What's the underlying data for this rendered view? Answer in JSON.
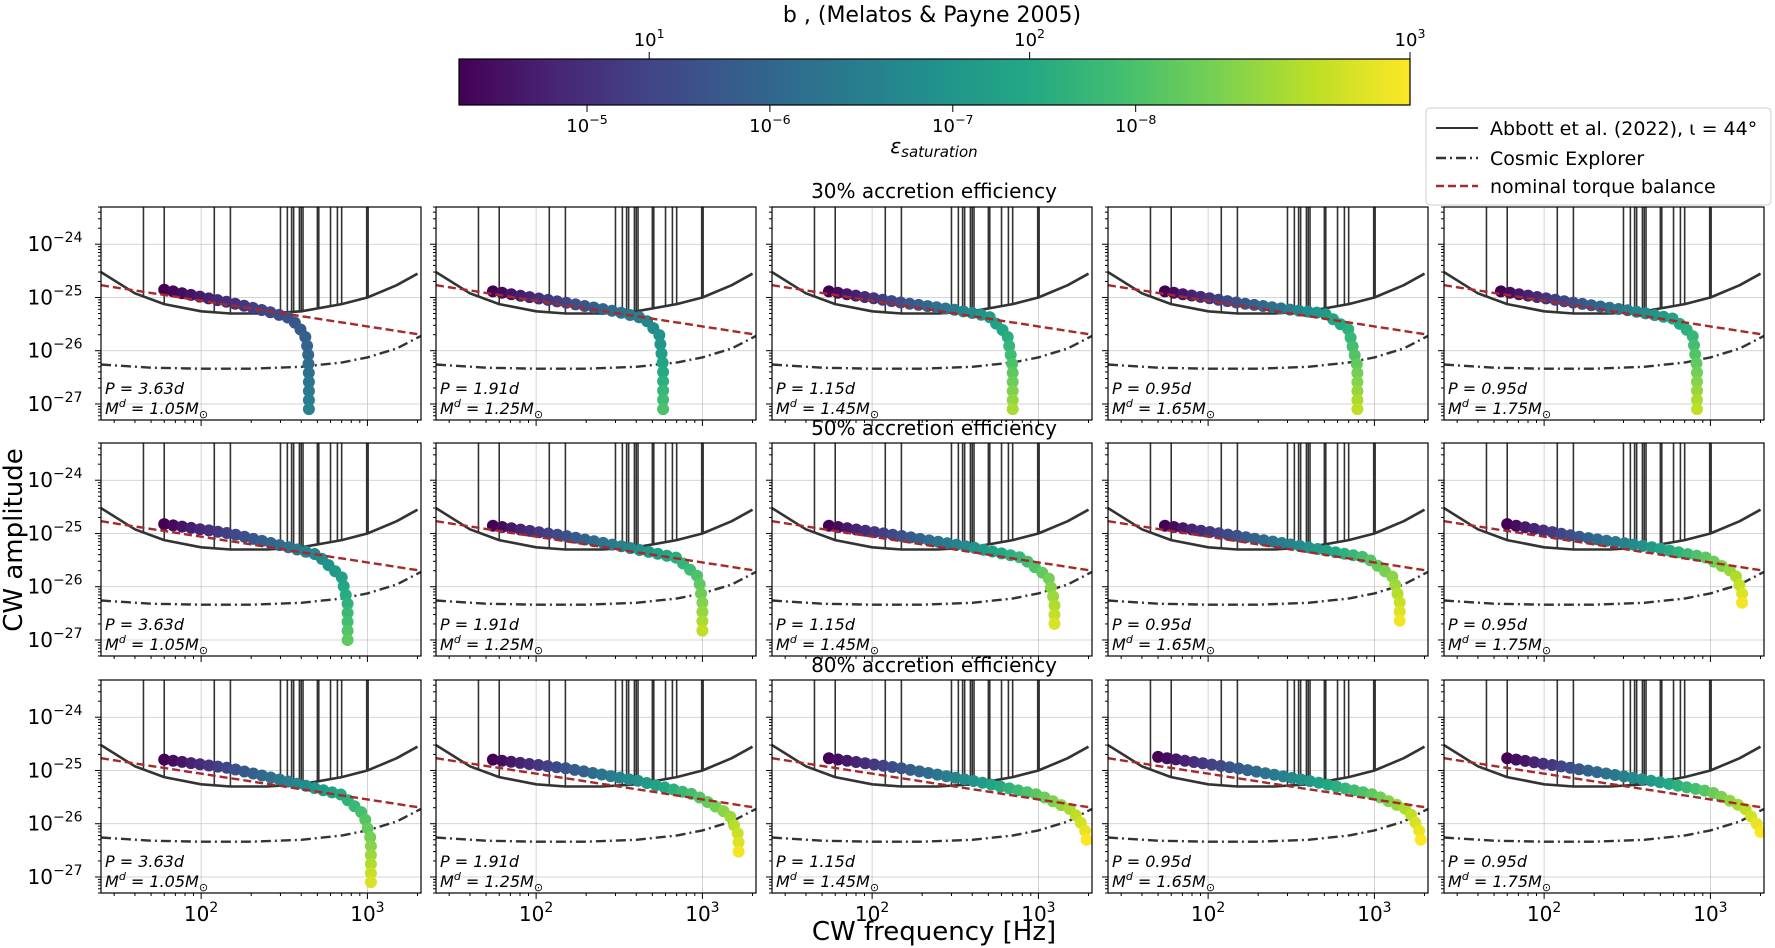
{
  "chart_data": [
    {
      "type": "scatter",
      "xlabel": "CW frequency [Hz]",
      "ylabel": "CW amplitude",
      "xscale": "log",
      "yscale": "log",
      "xlim": [
        25,
        2100
      ],
      "ylim": [
        5e-28,
        5e-24
      ],
      "grid": true,
      "x_tick_labels": [
        "10^2",
        "10^3"
      ],
      "y_tick_labels": [
        "10^-27",
        "10^-26",
        "10^-25",
        "10^-24"
      ],
      "row_titles": [
        "30% accretion efficiency",
        "50% accretion efficiency",
        "80% accretion efficiency"
      ],
      "legend": {
        "placement": "top-right",
        "entries": [
          {
            "label": "Abbott et al. (2022), ι = 44°",
            "style": "solid",
            "color": "#333333"
          },
          {
            "label": "Cosmic Explorer",
            "style": "dashdot",
            "color": "#333333"
          },
          {
            "label": "nominal torque balance",
            "style": "dashed",
            "color": "#a52a2a"
          }
        ]
      },
      "colorbar": {
        "colormap": "viridis",
        "top_label": "b , (Melatos & Payne 2005)",
        "top_ticks": [
          "10^1",
          "10^2",
          "10^3"
        ],
        "bottom_label": "ε_saturation",
        "bottom_ticks": [
          "10^-5",
          "10^-6",
          "10^-7",
          "10^-8"
        ]
      },
      "reference_curves": {
        "abbott_2022": {
          "f": [
            25,
            40,
            60,
            100,
            150,
            250,
            400,
            700,
            1000,
            1500,
            2000
          ],
          "h": [
            3e-25,
            1.2e-25,
            7.5e-26,
            5.5e-26,
            5e-26,
            5e-26,
            5.5e-26,
            7.5e-26,
            1e-25,
            1.7e-25,
            2.8e-25
          ]
        },
        "abbott_2022_lines_hz": [
          45,
          60,
          120,
          150,
          300,
          330,
          350,
          360,
          390,
          400,
          410,
          500,
          510,
          600,
          660,
          700,
          990,
          1000,
          1010
        ],
        "cosmic_explorer": {
          "f": [
            25,
            50,
            100,
            200,
            400,
            700,
            1000,
            1500,
            2100
          ],
          "h": [
            5.5e-27,
            4.8e-27,
            4.6e-27,
            4.6e-27,
            5e-27,
            6e-27,
            7.5e-27,
            1.1e-26,
            1.9e-26
          ]
        },
        "nominal_torque_balance": {
          "f": [
            25,
            2100
          ],
          "h": [
            1.7e-25,
            2e-26
          ]
        }
      },
      "panels": [
        [
          {
            "label_P": "P = 3.63d",
            "label_M": "M^d = 1.05M_⊙",
            "path": [
              [
                60,
                1.4e-25
              ],
              [
                150,
                8e-26
              ],
              [
                250,
                5.5e-26
              ],
              [
                350,
                4e-26
              ],
              [
                420,
                2e-26
              ],
              [
                440,
                1e-26
              ],
              [
                445,
                3e-27
              ],
              [
                445,
                8e-28
              ]
            ],
            "eps_range": [
              -4.3,
              -6.6
            ]
          },
          {
            "label_P": "P = 1.91d",
            "label_M": "M^d = 1.25M_⊙",
            "path": [
              [
                55,
                1.3e-25
              ],
              [
                150,
                8e-26
              ],
              [
                300,
                5.5e-26
              ],
              [
                450,
                4e-26
              ],
              [
                550,
                2e-26
              ],
              [
                580,
                5e-27
              ],
              [
                580,
                8e-28
              ]
            ],
            "eps_range": [
              -4.3,
              -8.0
            ]
          },
          {
            "label_P": "P = 1.15d",
            "label_M": "M^d = 1.45M_⊙",
            "path": [
              [
                55,
                1.3e-25
              ],
              [
                150,
                8e-26
              ],
              [
                300,
                6e-26
              ],
              [
                500,
                4.5e-26
              ],
              [
                650,
                2e-26
              ],
              [
                700,
                5e-27
              ],
              [
                700,
                8e-28
              ]
            ],
            "eps_range": [
              -4.3,
              -8.8
            ]
          },
          {
            "label_P": "P = 0.95d",
            "label_M": "M^d = 1.65M_⊙",
            "path": [
              [
                55,
                1.3e-25
              ],
              [
                150,
                8e-26
              ],
              [
                300,
                6e-26
              ],
              [
                500,
                5e-26
              ],
              [
                700,
                2.5e-26
              ],
              [
                790,
                5e-27
              ],
              [
                790,
                8e-28
              ]
            ],
            "eps_range": [
              -4.3,
              -9.0
            ]
          },
          {
            "label_P": "P = 0.95d",
            "label_M": "M^d = 1.75M_⊙",
            "path": [
              [
                55,
                1.3e-25
              ],
              [
                150,
                8e-26
              ],
              [
                350,
                5.5e-26
              ],
              [
                600,
                4e-26
              ],
              [
                780,
                2e-26
              ],
              [
                830,
                5e-27
              ],
              [
                830,
                8e-28
              ]
            ],
            "eps_range": [
              -4.3,
              -9.0
            ]
          }
        ],
        [
          {
            "label_P": "P = 3.63d",
            "label_M": "M^d = 1.05M_⊙",
            "path": [
              [
                60,
                1.5e-25
              ],
              [
                150,
                1e-25
              ],
              [
                300,
                6e-26
              ],
              [
                500,
                4e-26
              ],
              [
                700,
                1.5e-26
              ],
              [
                760,
                5e-27
              ],
              [
                760,
                1e-27
              ]
            ],
            "eps_range": [
              -4.3,
              -8.2
            ]
          },
          {
            "label_P": "P = 1.91d",
            "label_M": "M^d = 1.25M_⊙",
            "path": [
              [
                55,
                1.4e-25
              ],
              [
                150,
                9e-26
              ],
              [
                350,
                5.5e-26
              ],
              [
                700,
                3.5e-26
              ],
              [
                950,
                1.5e-26
              ],
              [
                1000,
                5e-27
              ],
              [
                1000,
                1.5e-27
              ]
            ],
            "eps_range": [
              -4.3,
              -9.0
            ]
          },
          {
            "label_P": "P = 1.15d",
            "label_M": "M^d = 1.45M_⊙",
            "path": [
              [
                55,
                1.4e-25
              ],
              [
                150,
                9e-26
              ],
              [
                400,
                5.5e-26
              ],
              [
                800,
                3.5e-26
              ],
              [
                1150,
                1.5e-26
              ],
              [
                1250,
                5e-27
              ],
              [
                1250,
                2e-27
              ]
            ],
            "eps_range": [
              -4.3,
              -9.2
            ]
          },
          {
            "label_P": "P = 0.95d",
            "label_M": "M^d = 1.65M_⊙",
            "path": [
              [
                55,
                1.4e-25
              ],
              [
                150,
                9e-26
              ],
              [
                400,
                5.5e-26
              ],
              [
                900,
                3.5e-26
              ],
              [
                1300,
                1.5e-26
              ],
              [
                1420,
                5e-27
              ],
              [
                1420,
                2.3e-27
              ]
            ],
            "eps_range": [
              -4.3,
              -9.4
            ]
          },
          {
            "label_P": "P = 0.95d",
            "label_M": "M^d = 1.75M_⊙",
            "path": [
              [
                60,
                1.5e-25
              ],
              [
                150,
                9e-26
              ],
              [
                450,
                5.5e-26
              ],
              [
                950,
                3.5e-26
              ],
              [
                1400,
                1.8e-26
              ],
              [
                1550,
                8e-27
              ],
              [
                1550,
                5e-27
              ]
            ],
            "eps_range": [
              -4.3,
              -9.4
            ]
          }
        ],
        [
          {
            "label_P": "P = 3.63d",
            "label_M": "M^d = 1.05M_⊙",
            "path": [
              [
                60,
                1.6e-25
              ],
              [
                150,
                1.1e-25
              ],
              [
                350,
                6e-26
              ],
              [
                700,
                3.5e-26
              ],
              [
                950,
                1.5e-26
              ],
              [
                1050,
                5e-27
              ],
              [
                1050,
                8e-28
              ]
            ],
            "eps_range": [
              -4.3,
              -9.2
            ]
          },
          {
            "label_P": "P = 1.91d",
            "label_M": "M^d = 1.25M_⊙",
            "path": [
              [
                55,
                1.6e-25
              ],
              [
                150,
                1.1e-25
              ],
              [
                400,
                6.5e-26
              ],
              [
                900,
                3.5e-26
              ],
              [
                1450,
                1.5e-26
              ],
              [
                1650,
                6e-27
              ],
              [
                1650,
                3e-27
              ]
            ],
            "eps_range": [
              -4.3,
              -9.4
            ]
          },
          {
            "label_P": "P = 1.15d",
            "label_M": "M^d = 1.45M_⊙",
            "path": [
              [
                55,
                1.7e-25
              ],
              [
                150,
                1.1e-25
              ],
              [
                450,
                6e-26
              ],
              [
                1000,
                3.5e-26
              ],
              [
                1600,
                1.8e-26
              ],
              [
                1900,
                8e-27
              ],
              [
                1950,
                5e-27
              ]
            ],
            "eps_range": [
              -4.3,
              -9.5
            ]
          },
          {
            "label_P": "P = 0.95d",
            "label_M": "M^d = 1.65M_⊙",
            "path": [
              [
                50,
                1.8e-25
              ],
              [
                150,
                1.1e-25
              ],
              [
                450,
                6e-26
              ],
              [
                1000,
                3.5e-26
              ],
              [
                1600,
                1.8e-26
              ],
              [
                1850,
                8e-27
              ],
              [
                1900,
                5e-27
              ]
            ],
            "eps_range": [
              -4.3,
              -9.5
            ]
          },
          {
            "label_P": "P = 0.95d",
            "label_M": "M^d = 1.75M_⊙",
            "path": [
              [
                60,
                1.7e-25
              ],
              [
                150,
                1.1e-25
              ],
              [
                500,
                6e-26
              ],
              [
                1000,
                4e-26
              ],
              [
                1600,
                2e-26
              ],
              [
                1900,
                1e-26
              ],
              [
                2000,
                7e-27
              ]
            ],
            "eps_range": [
              -4.3,
              -9.5
            ]
          }
        ]
      ]
    }
  ]
}
